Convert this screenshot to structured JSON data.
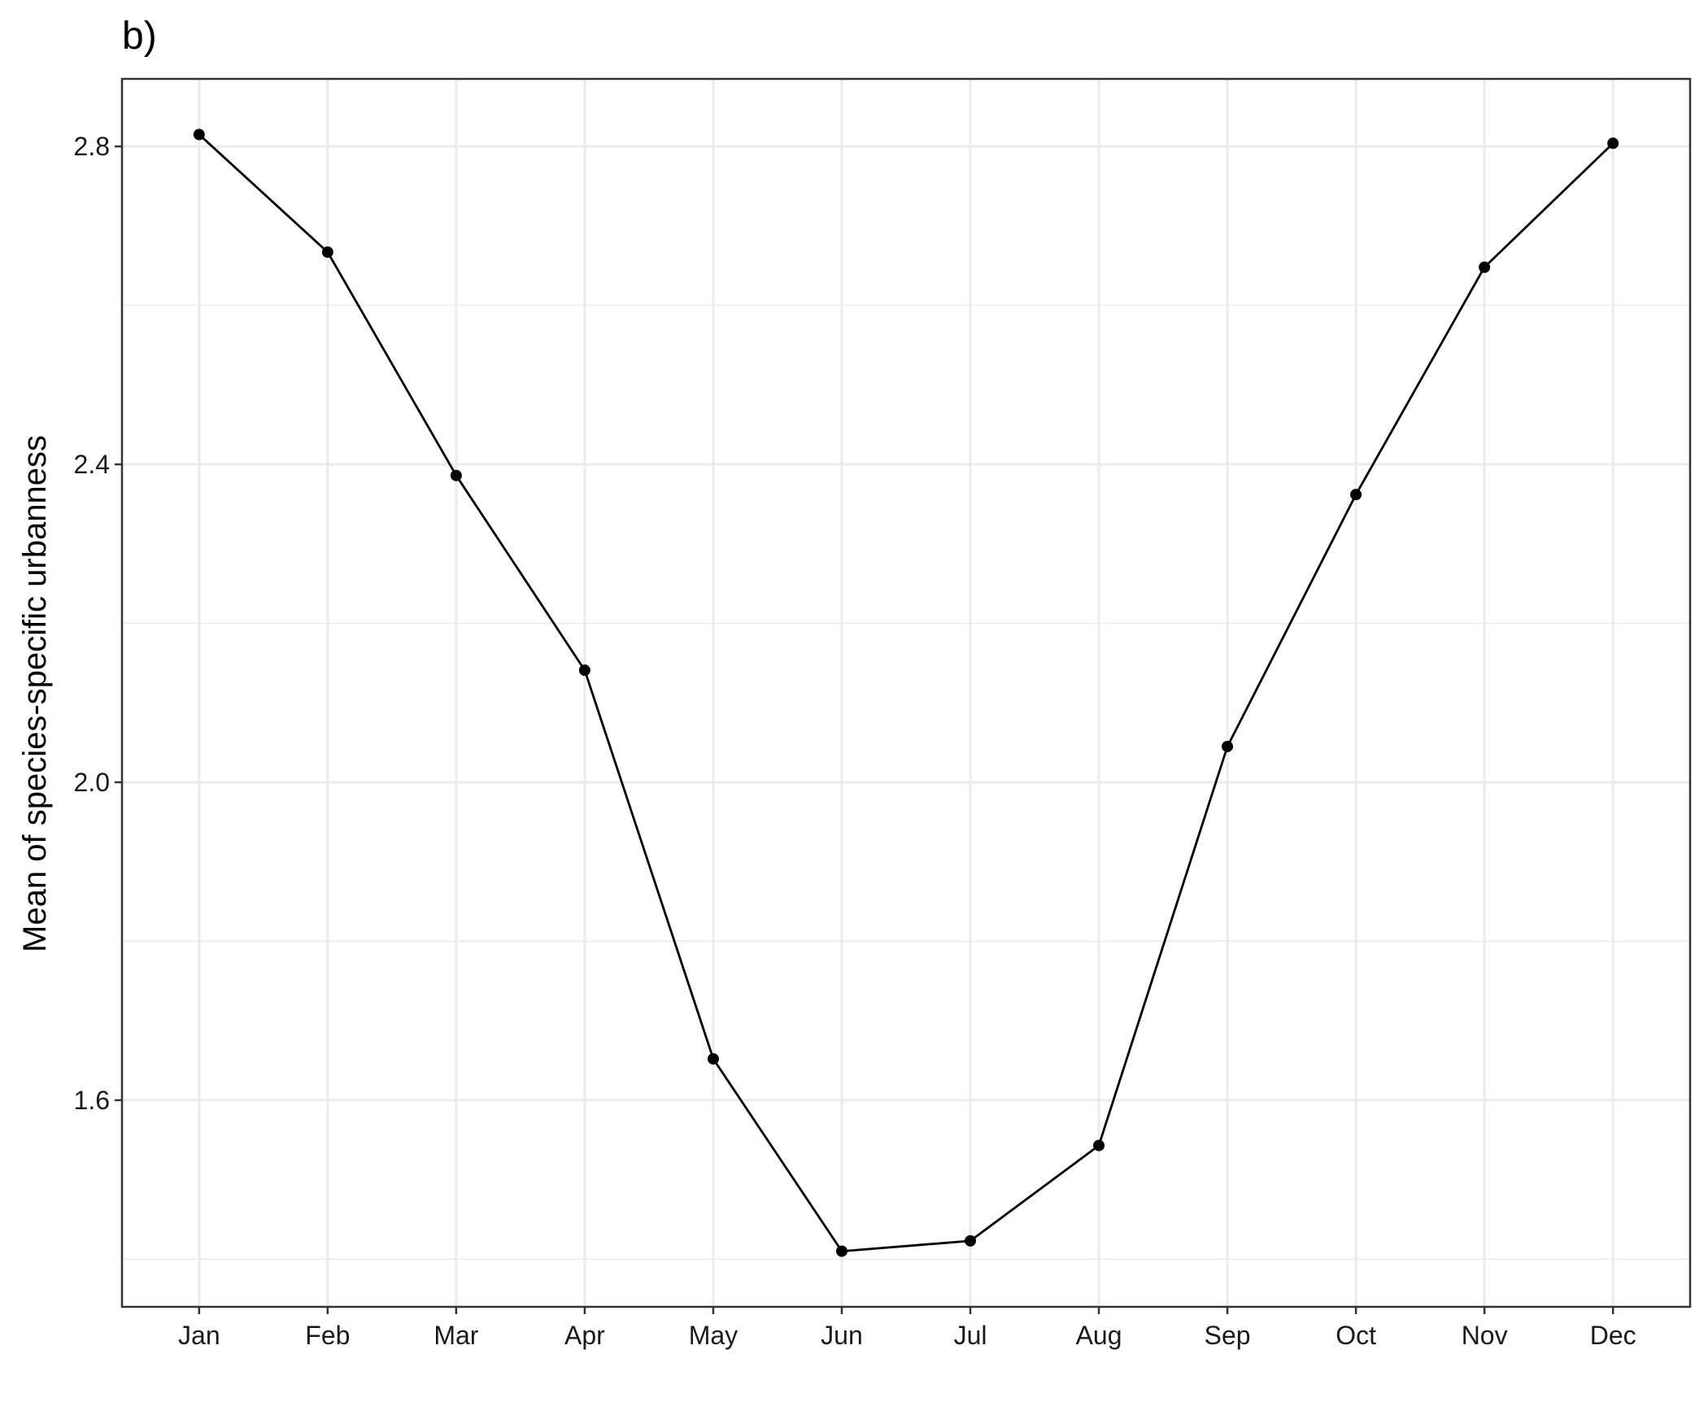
{
  "chart_data": {
    "type": "line",
    "title": "b)",
    "xlabel": "",
    "ylabel": "Mean of species-specific urbanness",
    "categories": [
      "Jan",
      "Feb",
      "Mar",
      "Apr",
      "May",
      "Jun",
      "Jul",
      "Aug",
      "Sep",
      "Oct",
      "Nov",
      "Dec"
    ],
    "series": [
      {
        "values": [
          2.815,
          2.667,
          2.386,
          2.141,
          1.652,
          1.41,
          1.423,
          1.543,
          2.045,
          2.362,
          2.648,
          2.804
        ]
      }
    ],
    "ylim": [
      1.34,
      2.885
    ],
    "y_ticks": [
      1.6,
      2.0,
      2.4,
      2.8
    ],
    "y_tick_labels": [
      "1.6",
      "2.0",
      "2.4",
      "2.8"
    ],
    "grid": true,
    "line_color": "#000000",
    "point_color": "#000000"
  }
}
